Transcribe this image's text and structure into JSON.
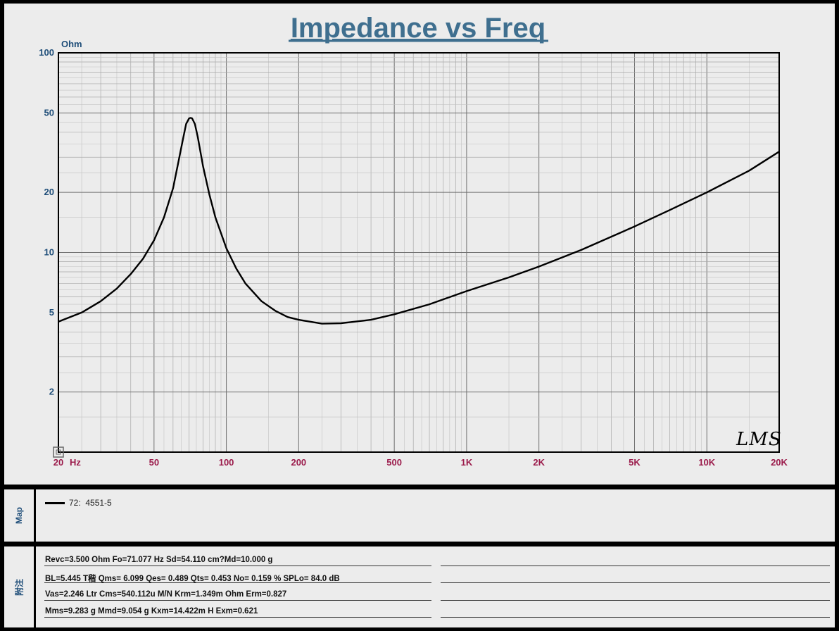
{
  "chart_data": {
    "type": "line",
    "title": "Impedance vs Freq",
    "ylabel": "Ohm",
    "xlabel": "Hz",
    "x_scale": "log",
    "y_scale": "log",
    "xlim": [
      20,
      20000
    ],
    "ylim": [
      1,
      100
    ],
    "grid": true,
    "x_ticks": [
      {
        "value": 20,
        "label": "20"
      },
      {
        "value": 50,
        "label": "50"
      },
      {
        "value": 100,
        "label": "100"
      },
      {
        "value": 200,
        "label": "200"
      },
      {
        "value": 500,
        "label": "500"
      },
      {
        "value": 1000,
        "label": "1K"
      },
      {
        "value": 2000,
        "label": "2K"
      },
      {
        "value": 5000,
        "label": "5K"
      },
      {
        "value": 10000,
        "label": "10K"
      },
      {
        "value": 20000,
        "label": "20K"
      }
    ],
    "y_ticks": [
      {
        "value": 2,
        "label": "2"
      },
      {
        "value": 5,
        "label": "5"
      },
      {
        "value": 10,
        "label": "10"
      },
      {
        "value": 20,
        "label": "20"
      },
      {
        "value": 50,
        "label": "50"
      },
      {
        "value": 100,
        "label": "100"
      }
    ],
    "series": [
      {
        "name": "72:  4551-5",
        "color": "#000000",
        "x": [
          20,
          25,
          30,
          35,
          40,
          45,
          50,
          55,
          60,
          63,
          66,
          68,
          70,
          71,
          72,
          74,
          76,
          80,
          85,
          90,
          100,
          110,
          120,
          140,
          160,
          180,
          200,
          250,
          300,
          400,
          500,
          700,
          1000,
          1500,
          2000,
          3000,
          5000,
          7000,
          10000,
          15000,
          20000
        ],
        "y": [
          4.5,
          5.0,
          5.7,
          6.6,
          7.8,
          9.3,
          11.5,
          15.0,
          21.0,
          28.0,
          37.0,
          44.0,
          47.0,
          47.2,
          47.0,
          44.0,
          38.0,
          27.0,
          19.5,
          15.0,
          10.5,
          8.3,
          7.0,
          5.7,
          5.1,
          4.75,
          4.6,
          4.4,
          4.42,
          4.6,
          4.9,
          5.5,
          6.4,
          7.5,
          8.5,
          10.3,
          13.5,
          16.3,
          20.0,
          25.7,
          32.0
        ]
      }
    ],
    "watermark": "LMS"
  },
  "map": {
    "label": "Map",
    "legend_entry": "72:  4551-5"
  },
  "notes": {
    "label": "附注",
    "lines": [
      "Revc=3.500 Ohm  Fo=71.077 Hz  Sd=54.110 cm?Md=10.000 g",
      "BL=5.445 T稭  Qms= 6.099  Qes= 0.489  Qts= 0.453  No= 0.159 %  SPLo= 84.0 dB",
      "Vas=2.246 Ltr  Cms=540.112u M/N  Krm=1.349m Ohm  Erm=0.827",
      "Mms=9.283 g  Mmd=9.054 g  Kxm=14.422m H  Exm=0.621"
    ]
  },
  "colors": {
    "title": "#3f6f8f",
    "y_tick_label": "#1f4e79",
    "x_tick_label": "#9b1b4b",
    "panel": "#ececec",
    "grid": "#9a9a9a"
  }
}
